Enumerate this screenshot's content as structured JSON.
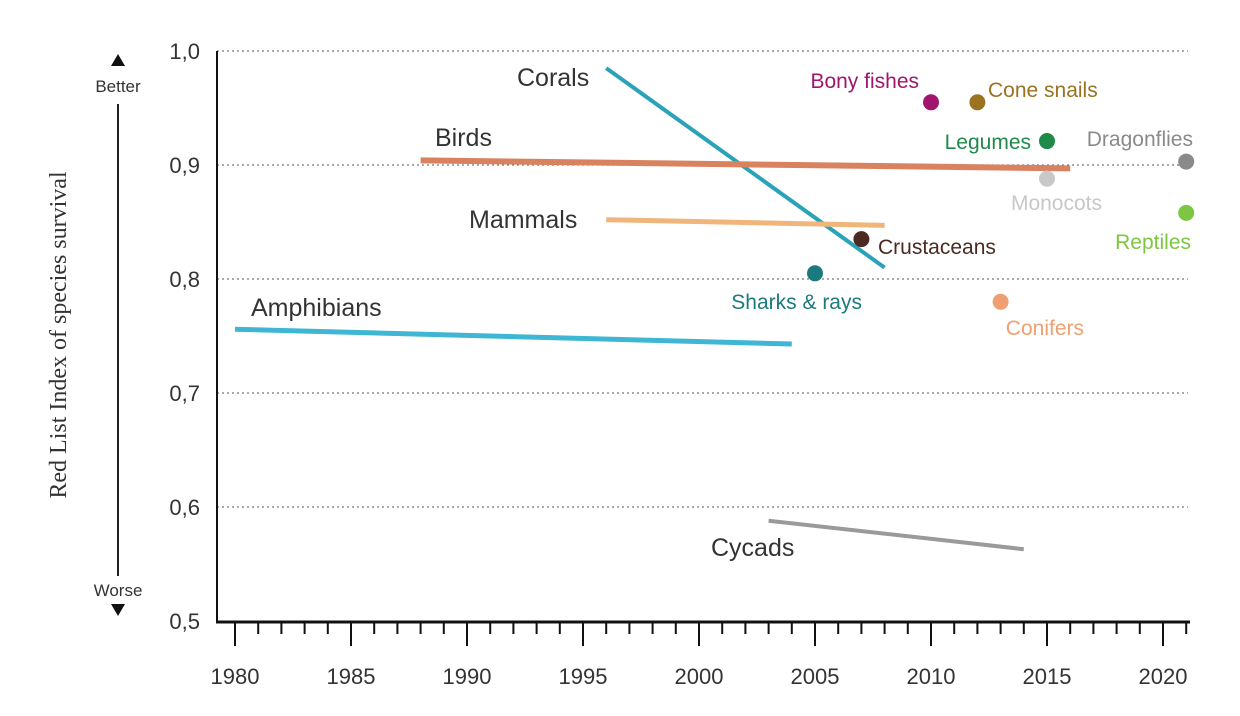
{
  "chart_data": {
    "type": "line",
    "title": "",
    "xlabel": "",
    "ylabel": "Red List Index of species survival",
    "xlim": [
      1980,
      2021
    ],
    "ylim": [
      0.5,
      1.0
    ],
    "x_ticks": [
      "1980",
      "1985",
      "1990",
      "1995",
      "2000",
      "2005",
      "2010",
      "2015",
      "2020"
    ],
    "y_ticks": [
      "0,5",
      "0,6",
      "0,7",
      "0,8",
      "0,9",
      "1,0"
    ],
    "y_direction": {
      "better": "Better",
      "worse": "Worse"
    },
    "grid": "horizontal dotted",
    "series": [
      {
        "name": "Corals",
        "color": "#2aa3b8",
        "points": [
          [
            1996,
            0.985
          ],
          [
            2008,
            0.81
          ]
        ]
      },
      {
        "name": "Birds",
        "color": "#d9825f",
        "points": [
          [
            1988,
            0.904
          ],
          [
            2016,
            0.897
          ]
        ]
      },
      {
        "name": "Mammals",
        "color": "#f0b57a",
        "points": [
          [
            1996,
            0.852
          ],
          [
            2008,
            0.847
          ]
        ]
      },
      {
        "name": "Amphibians",
        "color": "#3fb6d3",
        "points": [
          [
            1980,
            0.756
          ],
          [
            2004,
            0.743
          ]
        ]
      },
      {
        "name": "Cycads",
        "color": "#9a9a9a",
        "points": [
          [
            2003,
            0.588
          ],
          [
            2014,
            0.563
          ]
        ]
      }
    ],
    "points": [
      {
        "name": "Bony fishes",
        "color": "#a0156e",
        "x": 2010,
        "y": 0.955
      },
      {
        "name": "Cone snails",
        "color": "#9a7220",
        "x": 2012,
        "y": 0.955
      },
      {
        "name": "Legumes",
        "color": "#1f8a4a",
        "x": 2015,
        "y": 0.921
      },
      {
        "name": "Dragonflies",
        "color": "#8a8a8a",
        "x": 2021,
        "y": 0.903
      },
      {
        "name": "Monocots",
        "color": "#c8c8c8",
        "x": 2015,
        "y": 0.888
      },
      {
        "name": "Reptiles",
        "color": "#7cc642",
        "x": 2021,
        "y": 0.858
      },
      {
        "name": "Crustaceans",
        "color": "#4a2a22",
        "x": 2007,
        "y": 0.835
      },
      {
        "name": "Sharks & rays",
        "color": "#1a7a7e",
        "x": 2005,
        "y": 0.805
      },
      {
        "name": "Conifers",
        "color": "#f0a070",
        "x": 2013,
        "y": 0.78
      }
    ]
  }
}
